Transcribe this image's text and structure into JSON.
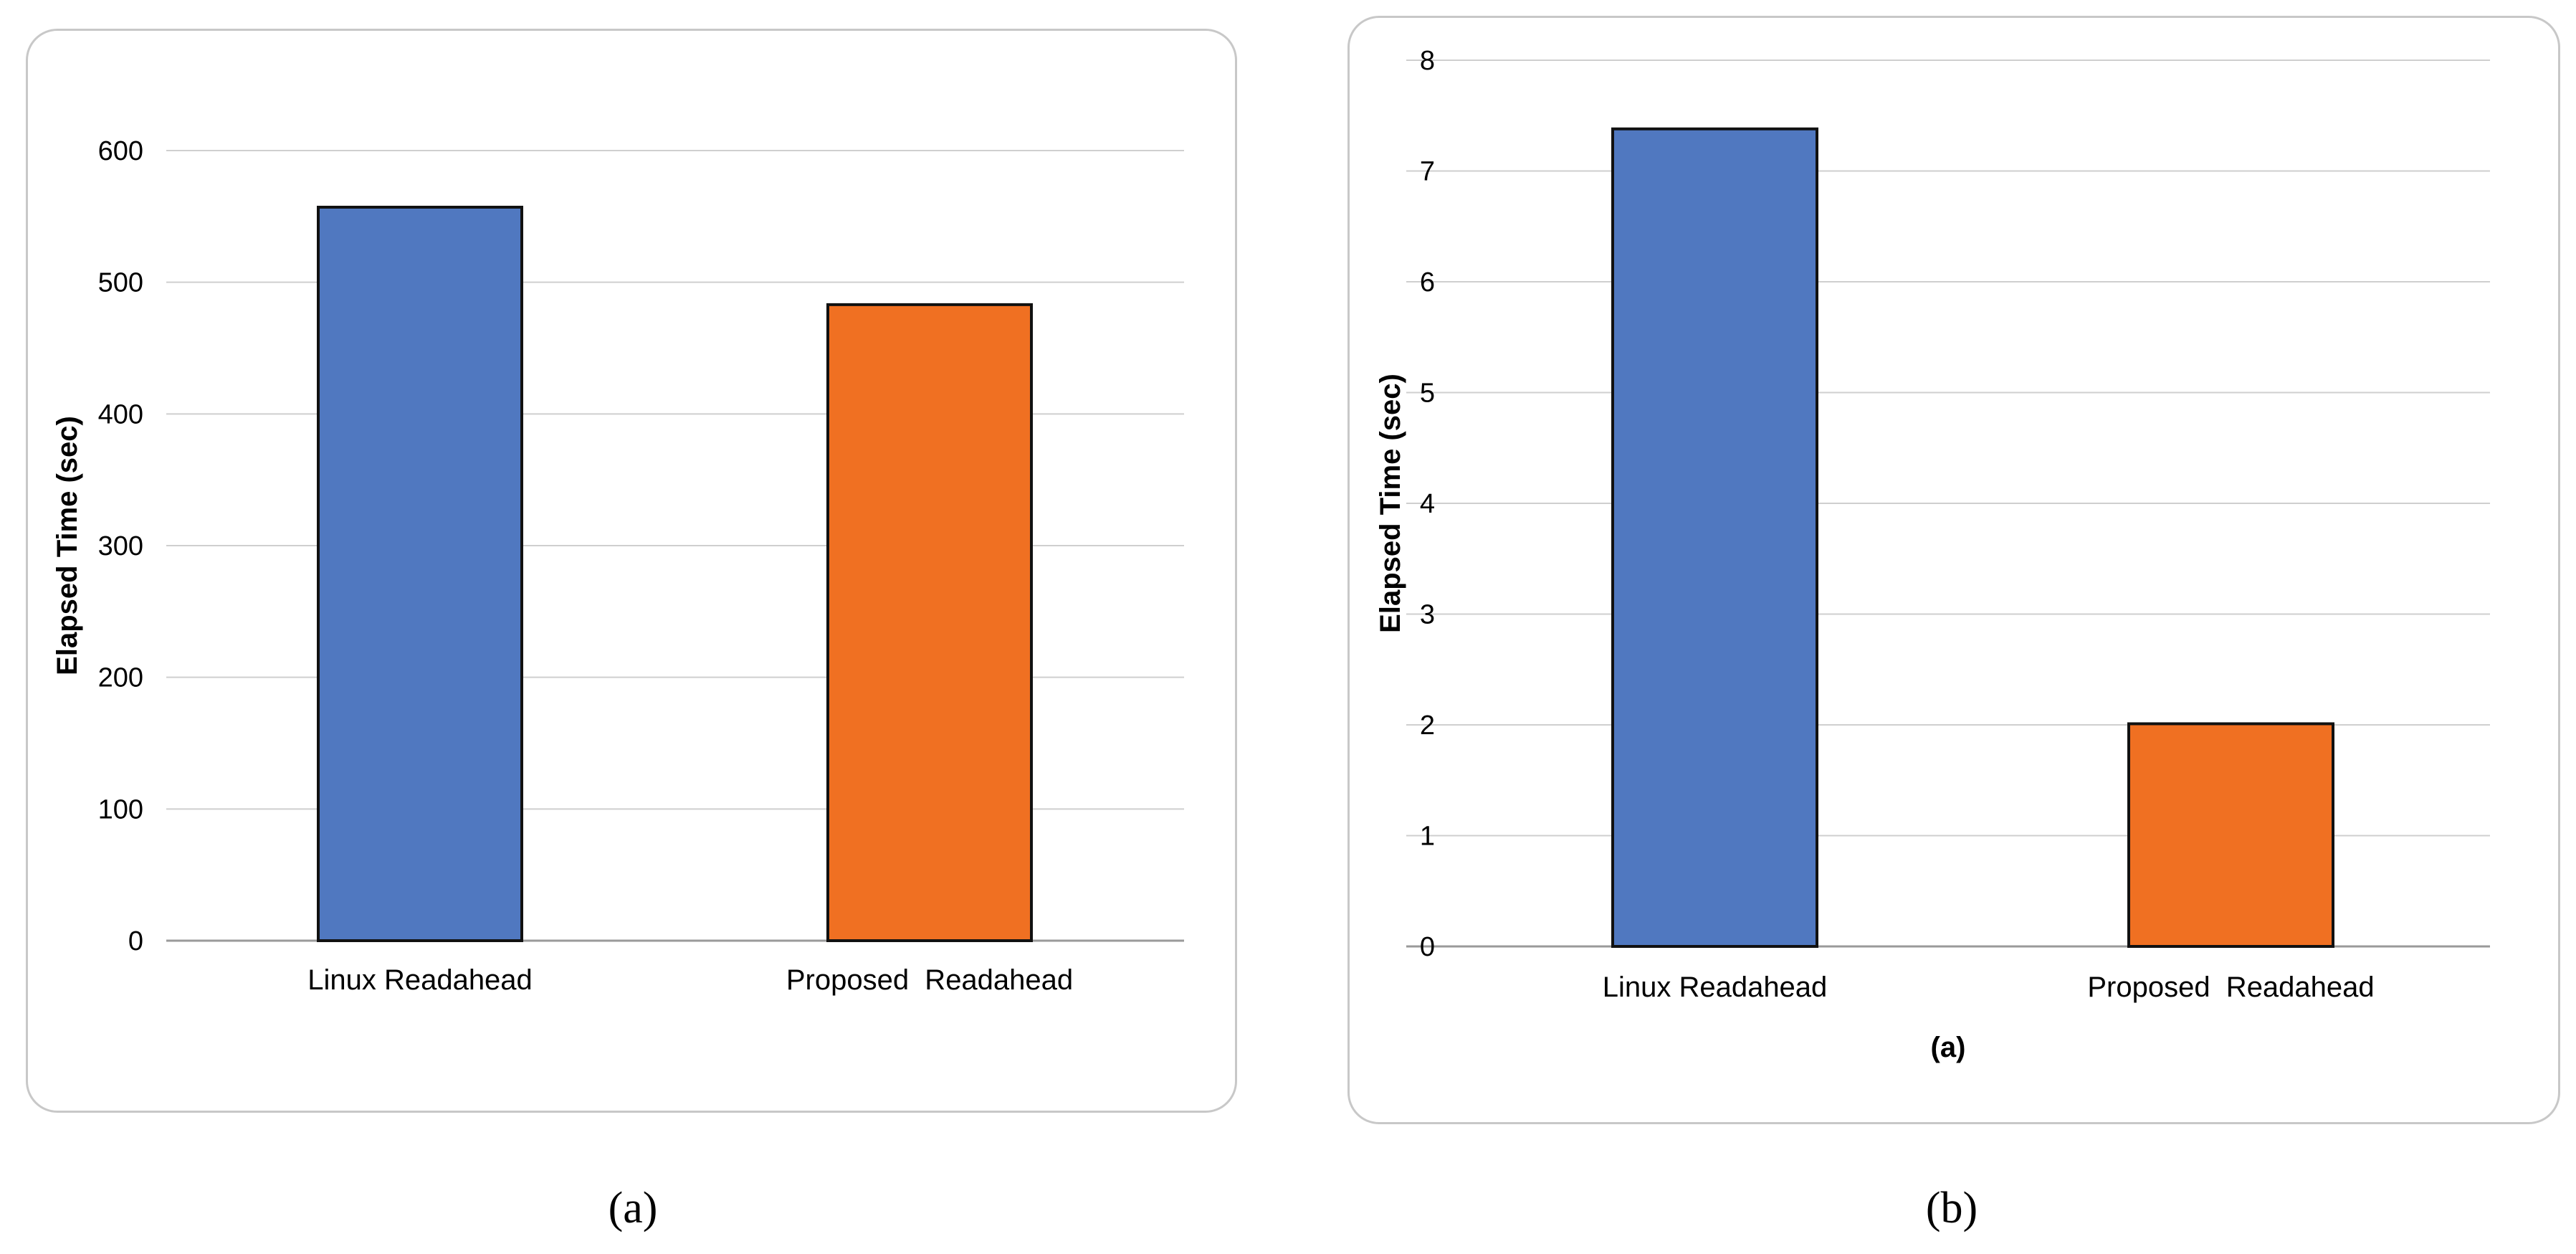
{
  "captions": {
    "a": "(a)",
    "b": "(b)"
  },
  "chart_data": [
    {
      "type": "bar",
      "title": "",
      "xlabel": "",
      "ylabel": "Elapsed Time (sec)",
      "categories": [
        "Linux Readahead",
        "Proposed  Readahead"
      ],
      "values": [
        557,
        483
      ],
      "colors": [
        "#5078c0",
        "#f07022"
      ],
      "ylim": [
        0,
        600
      ],
      "yticks": [
        "0",
        "100",
        "200",
        "300",
        "400",
        "500",
        "600"
      ],
      "grid": true,
      "legend": "none"
    },
    {
      "type": "bar",
      "title": "",
      "xlabel": "(a)",
      "ylabel": "Elapsed Time (sec)",
      "categories": [
        "Linux Readahead",
        "Proposed  Readahead"
      ],
      "values": [
        7.38,
        2.01
      ],
      "colors": [
        "#5078c0",
        "#f07022"
      ],
      "ylim": [
        0,
        8
      ],
      "yticks": [
        "0",
        "1",
        "2",
        "3",
        "4",
        "5",
        "6",
        "7",
        "8"
      ],
      "grid": true,
      "legend": "none"
    }
  ]
}
